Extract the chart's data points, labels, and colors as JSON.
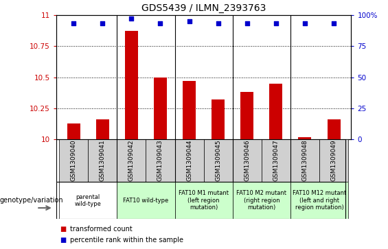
{
  "title": "GDS5439 / ILMN_2393763",
  "samples": [
    "GSM1309040",
    "GSM1309041",
    "GSM1309042",
    "GSM1309043",
    "GSM1309044",
    "GSM1309045",
    "GSM1309046",
    "GSM1309047",
    "GSM1309048",
    "GSM1309049"
  ],
  "bar_values": [
    10.13,
    10.16,
    10.87,
    10.5,
    10.47,
    10.32,
    10.38,
    10.45,
    10.02,
    10.16
  ],
  "dot_values": [
    93,
    93,
    97,
    93,
    95,
    93,
    93,
    93,
    93,
    93
  ],
  "ylim_left": [
    10,
    11
  ],
  "ylim_right": [
    0,
    100
  ],
  "yticks_left": [
    10,
    10.25,
    10.5,
    10.75,
    11
  ],
  "yticks_right": [
    0,
    25,
    50,
    75,
    100
  ],
  "bar_color": "#cc0000",
  "dot_color": "#0000cc",
  "bar_width": 0.45,
  "group_configs": [
    {
      "start": 0,
      "end": 1,
      "label": "parental\nwild-type",
      "color": "#ffffff"
    },
    {
      "start": 2,
      "end": 3,
      "label": "FAT10 wild-type",
      "color": "#ccffcc"
    },
    {
      "start": 4,
      "end": 5,
      "label": "FAT10 M1 mutant\n(left region\nmutation)",
      "color": "#ccffcc"
    },
    {
      "start": 6,
      "end": 7,
      "label": "FAT10 M2 mutant\n(right region\nmutation)",
      "color": "#ccffcc"
    },
    {
      "start": 8,
      "end": 9,
      "label": "FAT10 M12 mutant\n(left and right\nregion mutation)",
      "color": "#ccffcc"
    }
  ],
  "group_boundaries": [
    1.5,
    3.5,
    5.5,
    7.5
  ],
  "legend_red_label": "transformed count",
  "legend_blue_label": "percentile rank within the sample",
  "genotype_label": "genotype/variation",
  "tick_color_left": "#cc0000",
  "tick_color_right": "#0000cc",
  "sample_bg_color": "#d0d0d0"
}
